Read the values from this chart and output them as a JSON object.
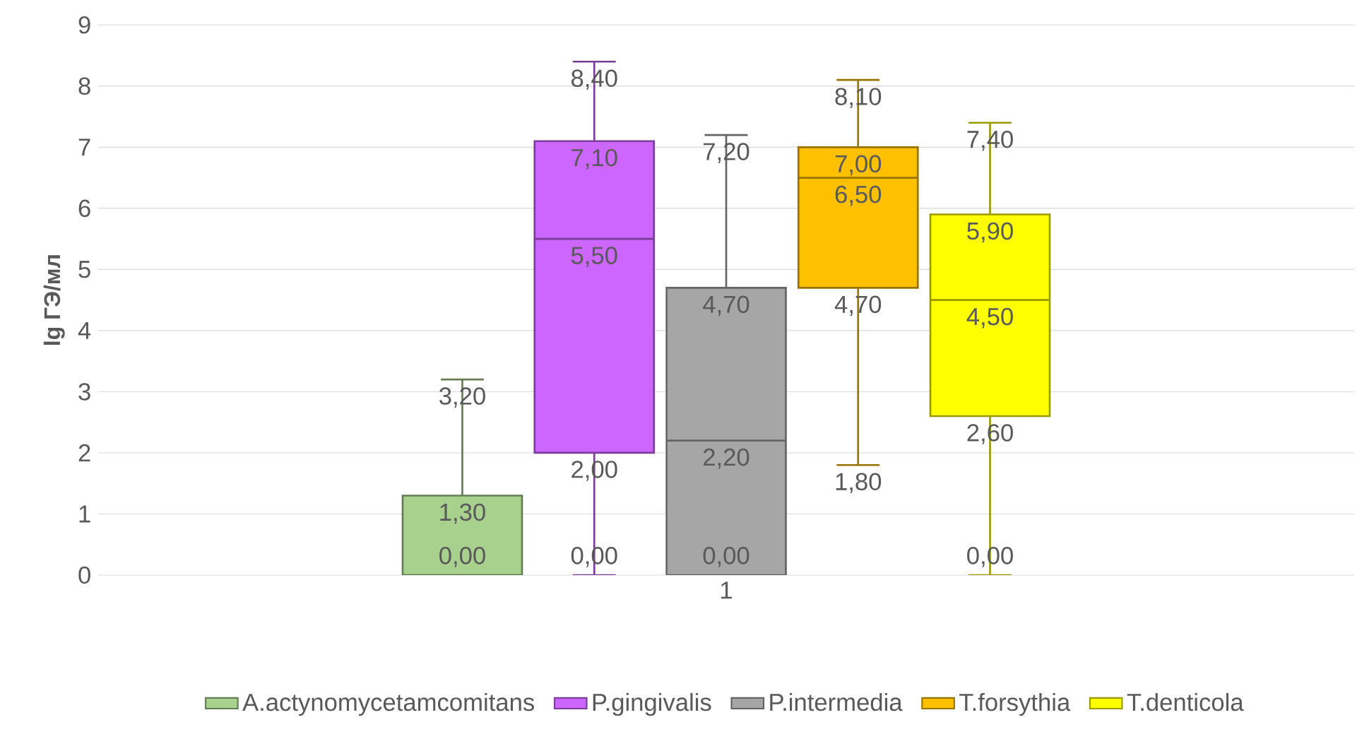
{
  "chart_data": {
    "type": "box",
    "ylabel": "lg ГЭ/мл",
    "categories": [
      "1"
    ],
    "ylim": [
      0,
      9
    ],
    "yticks": [
      0,
      1,
      2,
      3,
      4,
      5,
      6,
      7,
      8,
      9
    ],
    "grid": "y",
    "legend": "bottom",
    "annotations": [
      "0,00",
      "1,30",
      "3,20",
      "0,00",
      "2,00",
      "5,50",
      "7,10",
      "8,40",
      "0,00",
      "2,20",
      "4,70",
      "7,20",
      "1,80",
      "4,70",
      "6,50",
      "7,00",
      "8,10",
      "0,00",
      "2,60",
      "4,50",
      "5,90",
      "7,40"
    ],
    "series": [
      {
        "name": "A.actynomycetamcomitans",
        "color": "#a9d18e",
        "boxes": [
          {
            "low": 0,
            "q1": 0,
            "median": 0,
            "q3": 1.3,
            "high": 3.2
          }
        ]
      },
      {
        "name": "P.gingivalis",
        "color": "#cc66ff",
        "boxes": [
          {
            "low": 0,
            "q1": 2.0,
            "median": 5.5,
            "q3": 7.1,
            "high": 8.4
          }
        ]
      },
      {
        "name": "P.intermedia",
        "color": "#a6a6a6",
        "boxes": [
          {
            "low": 0,
            "q1": 0,
            "median": 2.2,
            "q3": 4.7,
            "high": 7.2
          }
        ]
      },
      {
        "name": "T.forsythia",
        "color": "#ffc000",
        "boxes": [
          {
            "low": 1.8,
            "q1": 4.7,
            "median": 6.5,
            "q3": 7.0,
            "high": 8.1
          }
        ]
      },
      {
        "name": "T.denticola",
        "color": "#ffff00",
        "boxes": [
          {
            "low": 0,
            "q1": 2.6,
            "median": 4.5,
            "q3": 5.9,
            "high": 7.4
          }
        ]
      }
    ]
  }
}
